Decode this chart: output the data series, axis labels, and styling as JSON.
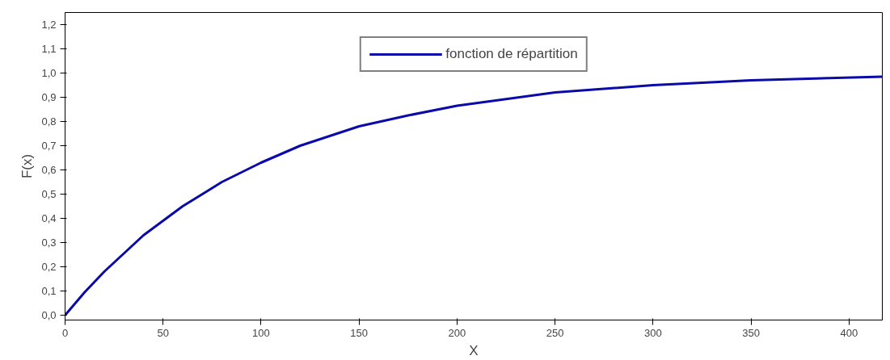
{
  "chart_data": {
    "type": "line",
    "xlabel": "X",
    "ylabel": "F(x)",
    "xlim": [
      0,
      417
    ],
    "ylim": [
      -0.02,
      1.25
    ],
    "xticks": [
      0,
      50,
      100,
      150,
      200,
      250,
      300,
      350,
      400
    ],
    "yticks": [
      {
        "value": 0,
        "label": "0,0"
      },
      {
        "value": 0.1,
        "label": "0,1"
      },
      {
        "value": 0.2,
        "label": "0,2"
      },
      {
        "value": 0.3,
        "label": "0,3"
      },
      {
        "value": 0.4,
        "label": "0,4"
      },
      {
        "value": 0.5,
        "label": "0,5"
      },
      {
        "value": 0.6,
        "label": "0,6"
      },
      {
        "value": 0.7,
        "label": "0,7"
      },
      {
        "value": 0.8,
        "label": "0,8"
      },
      {
        "value": 0.9,
        "label": "0,9"
      },
      {
        "value": 1.0,
        "label": "1,0"
      },
      {
        "value": 1.1,
        "label": "1,1"
      },
      {
        "value": 1.2,
        "label": "1,2"
      }
    ],
    "grid": false,
    "legend": "top",
    "line_style": "solid",
    "series": [
      {
        "name": "fonction de répartition",
        "color": "#0a0aa8",
        "x": [
          0,
          10,
          20,
          40,
          60,
          80,
          100,
          120,
          150,
          175,
          200,
          250,
          300,
          350,
          417
        ],
        "values": [
          0,
          0.095,
          0.18,
          0.33,
          0.45,
          0.55,
          0.63,
          0.7,
          0.78,
          0.825,
          0.865,
          0.92,
          0.95,
          0.97,
          0.985
        ]
      }
    ]
  }
}
